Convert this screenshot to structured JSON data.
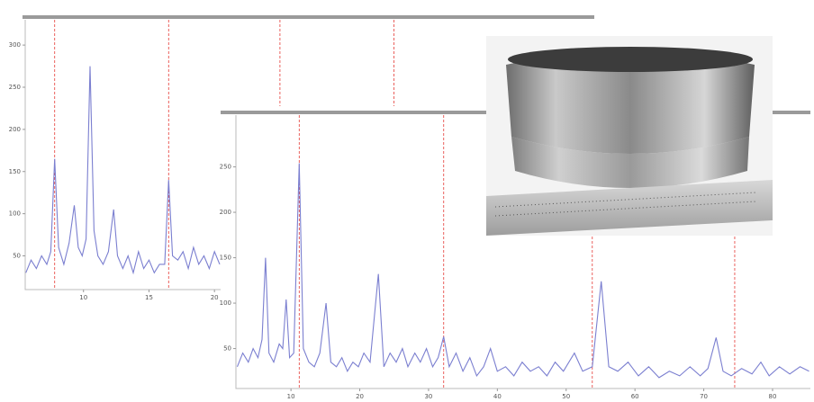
{
  "chart_data": [
    {
      "type": "line",
      "x": [
        5.6,
        6.0,
        6.4,
        6.8,
        7.2,
        7.5,
        7.8,
        8.1,
        8.5,
        8.9,
        9.3,
        9.6,
        9.9,
        10.2,
        10.5,
        10.8,
        11.1,
        11.5,
        11.9,
        12.3,
        12.6,
        13.0,
        13.4,
        13.8,
        14.2,
        14.6,
        15.0,
        15.4,
        15.8,
        16.2,
        16.5,
        16.8,
        17.2,
        17.6,
        18.0,
        18.4,
        18.8,
        19.2,
        19.6,
        20.0,
        20.4
      ],
      "values": [
        30,
        45,
        35,
        50,
        40,
        55,
        165,
        60,
        40,
        65,
        110,
        60,
        50,
        70,
        275,
        80,
        50,
        40,
        55,
        105,
        50,
        35,
        50,
        30,
        55,
        35,
        45,
        30,
        40,
        40,
        140,
        50,
        45,
        55,
        35,
        60,
        40,
        50,
        35,
        55,
        40
      ],
      "color": "#7b7fd0",
      "markers": [
        7.8,
        16.5,
        25.0,
        33.7
      ],
      "marker_color": "#e53935",
      "xlim": [
        5.55,
        49
      ],
      "ylim": [
        10,
        330
      ],
      "xticks": [
        10,
        15,
        20
      ],
      "yticks": [
        50,
        100,
        150,
        200,
        250,
        300
      ]
    },
    {
      "type": "line",
      "x": [
        2.2,
        3.0,
        3.8,
        4.5,
        5.2,
        5.8,
        6.3,
        6.8,
        7.5,
        8.3,
        8.8,
        9.3,
        9.8,
        10.4,
        11.2,
        11.8,
        12.6,
        13.4,
        14.2,
        15.1,
        15.8,
        16.6,
        17.4,
        18.2,
        19.0,
        19.8,
        20.6,
        21.5,
        22.7,
        23.5,
        24.4,
        25.3,
        26.2,
        27.0,
        28.0,
        28.8,
        29.7,
        30.6,
        31.4,
        32.2,
        33.0,
        34.0,
        35.0,
        36.0,
        37.0,
        38.0,
        39.0,
        40.0,
        41.2,
        42.4,
        43.6,
        44.8,
        46.0,
        47.2,
        48.4,
        49.6,
        51.2,
        52.4,
        53.8,
        55.1,
        56.2,
        57.5,
        59.0,
        60.5,
        62.0,
        63.5,
        65.0,
        66.5,
        68.0,
        69.5,
        70.6,
        71.8,
        72.8,
        74.0,
        75.5,
        77.0,
        78.3,
        79.5,
        81.0,
        82.5,
        84.0,
        85.3
      ],
      "values": [
        30,
        45,
        35,
        50,
        40,
        60,
        150,
        45,
        35,
        55,
        50,
        104,
        40,
        45,
        254,
        50,
        35,
        30,
        45,
        100,
        35,
        30,
        40,
        25,
        35,
        30,
        45,
        35,
        132,
        30,
        45,
        35,
        50,
        30,
        45,
        35,
        50,
        30,
        40,
        63,
        30,
        45,
        25,
        40,
        20,
        30,
        50,
        25,
        30,
        20,
        35,
        25,
        30,
        20,
        35,
        25,
        45,
        25,
        30,
        124,
        30,
        25,
        35,
        20,
        30,
        18,
        25,
        20,
        30,
        20,
        28,
        62,
        25,
        20,
        28,
        22,
        35,
        20,
        30,
        22,
        30,
        25
      ],
      "color": "#7b7fd0",
      "markers": [
        11.2,
        32.2,
        53.8,
        74.5
      ],
      "marker_color": "#e53935",
      "xlim": [
        2,
        85.5
      ],
      "ylim": [
        6,
        307
      ],
      "xticks": [
        10,
        20,
        30,
        40,
        50,
        60,
        70,
        80
      ],
      "yticks": [
        50,
        100,
        150,
        200,
        250
      ]
    }
  ]
}
